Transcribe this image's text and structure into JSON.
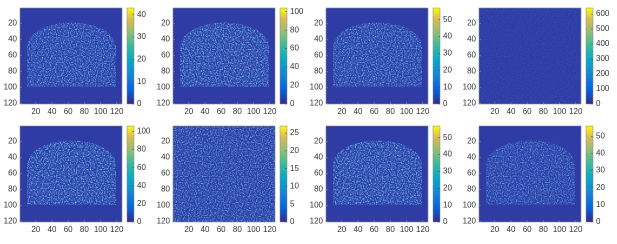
{
  "chart_data": [
    {
      "type": "heatmap",
      "colormap": "parula",
      "xlim": [
        0.5,
        126.5
      ],
      "ylim": [
        0.5,
        120.5
      ],
      "xticks": [
        20,
        40,
        60,
        80,
        100,
        120
      ],
      "yticks": [
        20,
        40,
        60,
        80,
        100,
        120
      ],
      "clim": [
        0,
        43
      ],
      "cticks": [
        0,
        10,
        20,
        30,
        40
      ]
    },
    {
      "type": "heatmap",
      "colormap": "parula",
      "xlim": [
        0.5,
        126.5
      ],
      "ylim": [
        0.5,
        120.5
      ],
      "xticks": [
        20,
        40,
        60,
        80,
        100,
        120
      ],
      "yticks": [
        20,
        40,
        60,
        80,
        100,
        120
      ],
      "clim": [
        0,
        104
      ],
      "cticks": [
        0,
        20,
        40,
        60,
        80,
        100
      ]
    },
    {
      "type": "heatmap",
      "colormap": "parula",
      "xlim": [
        0.5,
        126.5
      ],
      "ylim": [
        0.5,
        120.5
      ],
      "xticks": [
        20,
        40,
        60,
        80,
        100,
        120
      ],
      "yticks": [
        20,
        40,
        60,
        80,
        100,
        120
      ],
      "clim": [
        0,
        57
      ],
      "cticks": [
        0,
        10,
        20,
        30,
        40,
        50
      ]
    },
    {
      "type": "heatmap",
      "colormap": "parula",
      "xlim": [
        0.5,
        126.5
      ],
      "ylim": [
        0.5,
        120.5
      ],
      "xticks": [
        20,
        40,
        60,
        80,
        100,
        120
      ],
      "yticks": [
        20,
        40,
        60,
        80,
        100,
        120
      ],
      "clim": [
        0,
        640
      ],
      "cticks": [
        0,
        100,
        200,
        300,
        400,
        500,
        600
      ]
    },
    {
      "type": "heatmap",
      "colormap": "parula",
      "xlim": [
        0.5,
        126.5
      ],
      "ylim": [
        0.5,
        120.5
      ],
      "xticks": [
        20,
        40,
        60,
        80,
        100,
        120
      ],
      "yticks": [
        20,
        40,
        60,
        80,
        100,
        120
      ],
      "clim": [
        0,
        106
      ],
      "cticks": [
        0,
        20,
        40,
        60,
        80,
        100
      ]
    },
    {
      "type": "heatmap",
      "colormap": "parula",
      "xlim": [
        0.5,
        126.5
      ],
      "ylim": [
        0.5,
        120.5
      ],
      "xticks": [
        20,
        40,
        60,
        80,
        100,
        120
      ],
      "yticks": [
        20,
        40,
        60,
        80,
        100,
        120
      ],
      "clim": [
        0,
        27
      ],
      "cticks": [
        0,
        5,
        10,
        15,
        20,
        25
      ]
    },
    {
      "type": "heatmap",
      "colormap": "parula",
      "xlim": [
        0.5,
        126.5
      ],
      "ylim": [
        0.5,
        120.5
      ],
      "xticks": [
        20,
        40,
        60,
        80,
        100,
        120
      ],
      "yticks": [
        20,
        40,
        60,
        80,
        100,
        120
      ],
      "clim": [
        0,
        57
      ],
      "cticks": [
        0,
        10,
        20,
        30,
        40,
        50
      ]
    },
    {
      "type": "heatmap",
      "colormap": "parula",
      "xlim": [
        0.5,
        126.5
      ],
      "ylim": [
        0.5,
        120.5
      ],
      "xticks": [
        20,
        40,
        60,
        80,
        100,
        120
      ],
      "yticks": [
        20,
        40,
        60,
        80,
        100,
        120
      ],
      "clim": [
        0,
        56
      ],
      "cticks": [
        0,
        10,
        20,
        30,
        40,
        50
      ]
    }
  ]
}
